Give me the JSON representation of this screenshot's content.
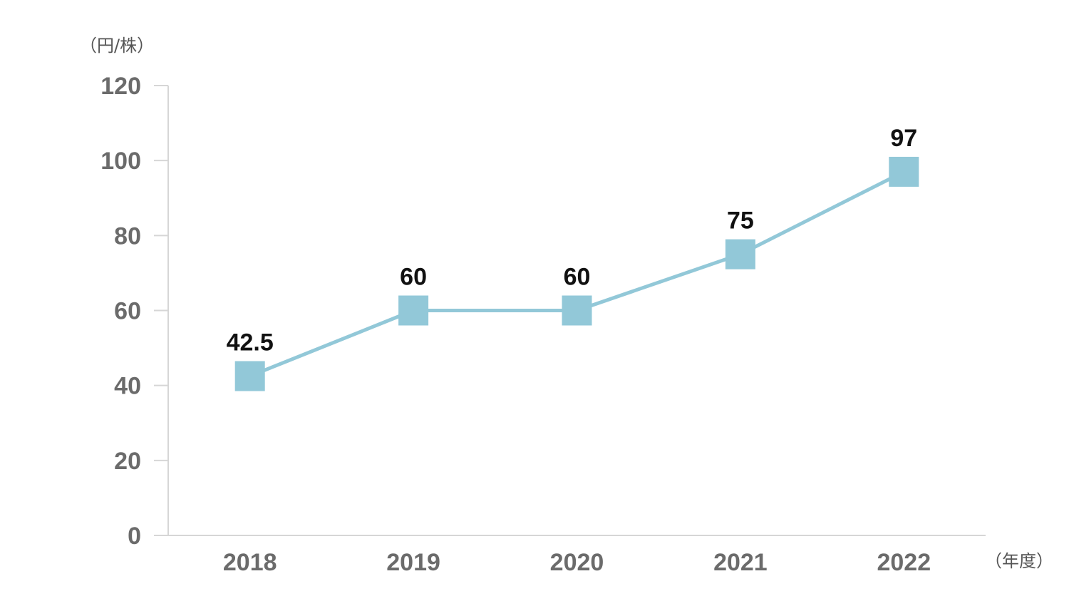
{
  "chart_data": {
    "type": "line",
    "title": "",
    "ylabel": "（円/株）",
    "xlabel": "（年度）",
    "categories": [
      "2018",
      "2019",
      "2020",
      "2021",
      "2022"
    ],
    "series": [
      {
        "values": [
          42.5,
          60,
          60,
          75,
          97
        ],
        "data_labels": [
          "42.5",
          "60",
          "60",
          "75",
          "97"
        ],
        "color": "#92c8d8",
        "marker": "square"
      }
    ],
    "ylim": [
      0,
      120
    ],
    "yticks": [
      0,
      20,
      40,
      60,
      80,
      100,
      120
    ],
    "ytick_labels": [
      "0",
      "20",
      "40",
      "60",
      "80",
      "100",
      "120"
    ],
    "grid": false,
    "legend": "none"
  }
}
